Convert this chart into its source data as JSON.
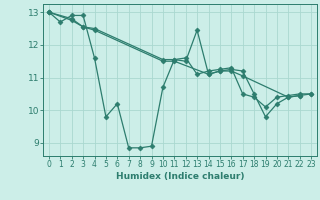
{
  "title": "",
  "xlabel": "Humidex (Indice chaleur)",
  "bg_color": "#cceee8",
  "line_color": "#2d7d6e",
  "marker": "D",
  "markersize": 2.5,
  "linewidth": 0.9,
  "xlim": [
    -0.5,
    23.5
  ],
  "ylim": [
    8.6,
    13.25
  ],
  "xticks": [
    0,
    1,
    2,
    3,
    4,
    5,
    6,
    7,
    8,
    9,
    10,
    11,
    12,
    13,
    14,
    15,
    16,
    17,
    18,
    19,
    20,
    21,
    22,
    23
  ],
  "yticks": [
    9,
    10,
    11,
    12,
    13
  ],
  "grid_color": "#aad8d0",
  "series": [
    [
      [
        0,
        13.0
      ],
      [
        1,
        12.7
      ],
      [
        2,
        12.9
      ],
      [
        3,
        12.9
      ],
      [
        4,
        11.6
      ],
      [
        5,
        9.8
      ],
      [
        6,
        10.2
      ],
      [
        7,
        8.85
      ],
      [
        8,
        8.85
      ],
      [
        9,
        8.9
      ],
      [
        10,
        10.7
      ],
      [
        11,
        11.55
      ],
      [
        12,
        11.5
      ],
      [
        13,
        12.45
      ],
      [
        14,
        11.1
      ],
      [
        15,
        11.2
      ],
      [
        16,
        11.25
      ],
      [
        17,
        11.2
      ],
      [
        18,
        10.5
      ],
      [
        19,
        9.8
      ],
      [
        20,
        10.2
      ],
      [
        21,
        10.4
      ],
      [
        22,
        10.45
      ],
      [
        23,
        10.5
      ]
    ],
    [
      [
        0,
        13.0
      ],
      [
        2,
        12.75
      ],
      [
        3,
        12.55
      ],
      [
        4,
        12.5
      ],
      [
        10,
        11.55
      ],
      [
        11,
        11.55
      ],
      [
        12,
        11.6
      ],
      [
        13,
        11.1
      ],
      [
        14,
        11.2
      ],
      [
        15,
        11.25
      ],
      [
        16,
        11.3
      ],
      [
        17,
        10.5
      ],
      [
        18,
        10.4
      ],
      [
        19,
        10.1
      ],
      [
        20,
        10.4
      ],
      [
        21,
        10.45
      ],
      [
        22,
        10.5
      ],
      [
        23,
        10.5
      ]
    ],
    [
      [
        0,
        13.0
      ],
      [
        2,
        12.8
      ],
      [
        3,
        12.55
      ],
      [
        4,
        12.45
      ],
      [
        10,
        11.5
      ],
      [
        11,
        11.5
      ],
      [
        14,
        11.1
      ],
      [
        15,
        11.2
      ],
      [
        16,
        11.2
      ],
      [
        17,
        11.05
      ],
      [
        21,
        10.4
      ],
      [
        22,
        10.45
      ]
    ]
  ]
}
